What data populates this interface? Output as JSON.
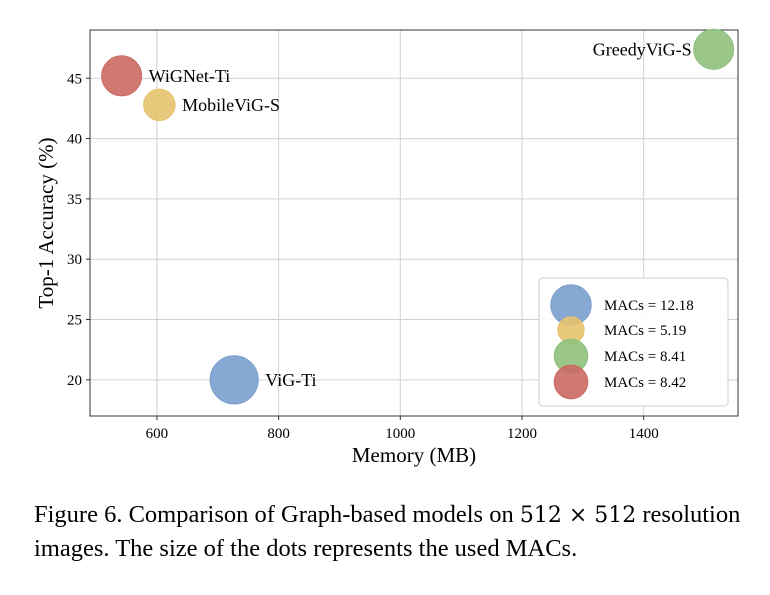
{
  "chart_data": {
    "type": "scatter",
    "xlabel": "Memory (MB)",
    "ylabel": "Top-1 Accuracy (%)",
    "xlim": [
      490,
      1555
    ],
    "ylim": [
      17,
      49
    ],
    "xticks": [
      600,
      800,
      1000,
      1200,
      1400
    ],
    "yticks": [
      20,
      25,
      30,
      35,
      40,
      45
    ],
    "grid": true,
    "legend_position": "bottom-right",
    "size_encoding": "MACs",
    "points": [
      {
        "name": "ViG-Ti",
        "x": 727,
        "y": 20.0,
        "macs": 12.18,
        "color": "#7b9fcf",
        "legend": "MACs = 12.18",
        "label_side": "right"
      },
      {
        "name": "MobileViG-S",
        "x": 604,
        "y": 42.8,
        "macs": 5.19,
        "color": "#e5c26d",
        "legend": "MACs = 5.19",
        "label_side": "right"
      },
      {
        "name": "GreedyViG-S",
        "x": 1515,
        "y": 47.4,
        "macs": 8.41,
        "color": "#8fc17c",
        "legend": "MACs = 8.41",
        "label_side": "left"
      },
      {
        "name": "WiGNet-Ti",
        "x": 542,
        "y": 45.2,
        "macs": 8.42,
        "color": "#cb6a64",
        "legend": "MACs = 8.42",
        "label_side": "right"
      }
    ]
  },
  "caption": {
    "prefix": "Figure 6. Comparison of Graph-based models on",
    "math": "512 × 512",
    "suffix": "resolution images. The size of the dots represents the used MACs."
  }
}
